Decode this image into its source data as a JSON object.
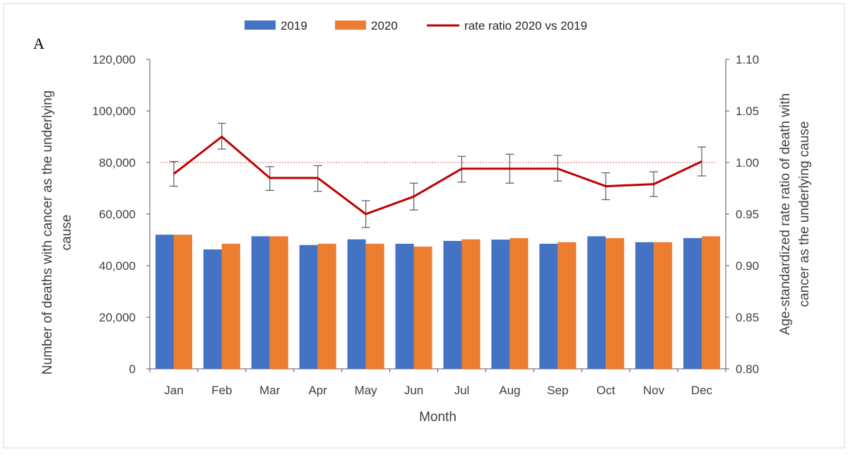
{
  "panel_label": "A",
  "colors": {
    "series_2019": "#4472C4",
    "series_2020": "#ED7D31",
    "ratio_line": "#C00000",
    "reference_line": "#E06060",
    "axis": "#595959"
  },
  "chart_data": {
    "type": "bar",
    "xlabel": "Month",
    "ylabel": "Number of deaths with cancer as the underlying cause",
    "ylabel_lines": [
      "Number of deaths with cancer as the underlying",
      "cause"
    ],
    "y2label": "Age-standardized rate ratio of death with cancer as the underlying cause",
    "y2label_lines": [
      "Age-standardized rate ratio of death with",
      "cancer as the underlying cause"
    ],
    "categories": [
      "Jan",
      "Feb",
      "Mar",
      "Apr",
      "May",
      "Jun",
      "Jul",
      "Aug",
      "Sep",
      "Oct",
      "Nov",
      "Dec"
    ],
    "series": [
      {
        "name": "2019",
        "axis": "left",
        "values": [
          52000,
          46300,
          51400,
          48000,
          50200,
          48500,
          49600,
          50100,
          48500,
          51400,
          49100,
          50700
        ]
      },
      {
        "name": "2020",
        "axis": "left",
        "values": [
          52000,
          48500,
          51400,
          48500,
          48500,
          47400,
          50200,
          50700,
          49100,
          50700,
          49100,
          51400
        ]
      }
    ],
    "line_series": {
      "name": "rate ratio 2020 vs 2019",
      "type": "line",
      "axis": "right",
      "values": [
        0.989,
        1.025,
        0.985,
        0.985,
        0.95,
        0.967,
        0.994,
        0.994,
        0.994,
        0.977,
        0.979,
        1.001
      ],
      "error_low": [
        0.977,
        1.013,
        0.973,
        0.972,
        0.937,
        0.954,
        0.981,
        0.98,
        0.982,
        0.964,
        0.967,
        0.987
      ],
      "error_high": [
        1.001,
        1.038,
        0.996,
        0.997,
        0.963,
        0.98,
        1.006,
        1.008,
        1.007,
        0.99,
        0.991,
        1.015
      ]
    },
    "reference_line": {
      "axis": "right",
      "value": 1.0,
      "style": "dotted"
    },
    "ylim": [
      0,
      120000
    ],
    "yticks": [
      "0",
      "20,000",
      "40,000",
      "60,000",
      "80,000",
      "100,000",
      "120,000"
    ],
    "y2lim": [
      0.8,
      1.1
    ],
    "y2ticks": [
      "0.80",
      "0.85",
      "0.90",
      "0.95",
      "1.00",
      "1.05",
      "1.10"
    ],
    "legend_position": "top-center",
    "grid": false
  }
}
